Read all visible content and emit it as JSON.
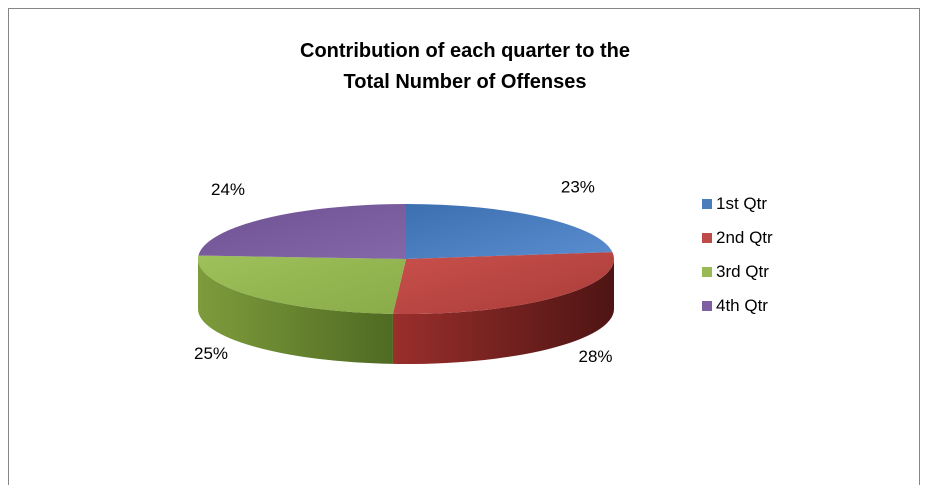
{
  "chart_data": {
    "type": "pie",
    "title": "Contribution of each quarter to the Total Number of Offenses",
    "title_lines": [
      "Contribution of each quarter to the",
      "Total Number of Offenses"
    ],
    "categories": [
      "1st Qtr",
      "2nd Qtr",
      "3rd Qtr",
      "4th Qtr"
    ],
    "values": [
      23,
      28,
      25,
      24
    ],
    "data_labels": [
      "23%",
      "28%",
      "25%",
      "24%"
    ],
    "colors": [
      "#4a7ebb",
      "#be4b48",
      "#98b954",
      "#7d60a0"
    ],
    "legend_position": "right",
    "style": "3d"
  }
}
